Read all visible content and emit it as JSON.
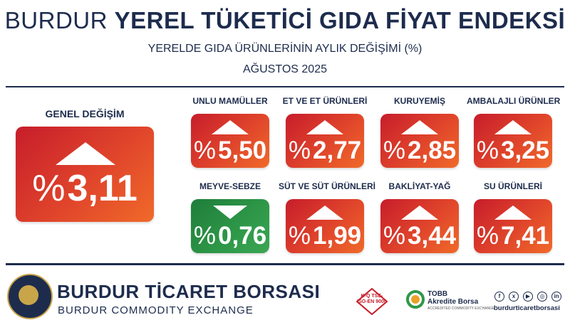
{
  "header": {
    "title_light": "BURDUR",
    "title_bold": "YEREL TÜKETİCİ GIDA FİYAT ENDEKSİ",
    "subtitle": "YERELDE GIDA ÜRÜNLERİNİN AYLIK DEĞİŞİMİ (%)",
    "period": "AĞUSTOS 2025"
  },
  "general": {
    "label": "GENEL DEĞİŞİM",
    "percent_sign": "%",
    "value": "3,11",
    "direction": "up"
  },
  "categories": [
    {
      "label": "UNLU MAMÜLLER",
      "value": "5,50",
      "direction": "up"
    },
    {
      "label": "ET VE ET ÜRÜNLERİ",
      "value": "2,77",
      "direction": "up"
    },
    {
      "label": "KURUYEMİŞ",
      "value": "2,85",
      "direction": "up"
    },
    {
      "label": "AMBALAJLI ÜRÜNLER",
      "value": "3,25",
      "direction": "up"
    },
    {
      "label": "MEYVE-SEBZE",
      "value": "0,76",
      "direction": "down"
    },
    {
      "label": "SÜT VE SÜT ÜRÜNLERİ",
      "value": "1,99",
      "direction": "up"
    },
    {
      "label": "BAKLİYAT-YAĞ",
      "value": "3,44",
      "direction": "up"
    },
    {
      "label": "SU ÜRÜNLERİ",
      "value": "7,41",
      "direction": "up"
    }
  ],
  "percent_sign": "%",
  "colors": {
    "up": "#e0452b",
    "down": "#2e9848",
    "navy": "#1d2c4d"
  },
  "footer": {
    "brand": "BURDUR TİCARET BORSASI",
    "brand_en": "BURDUR COMMODITY EXCHANGE",
    "kq_text": "K-Q TSE-ISO-EN 9000",
    "tobb_line1": "TOBB",
    "tobb_line2": "Akredite Borsa",
    "tobb_line3": "ACCREDITED COMMODITY EXCHANGE",
    "social_icons": [
      "facebook-icon",
      "x-icon",
      "youtube-icon",
      "instagram-icon",
      "linkedin-icon"
    ],
    "handle": "burdurticaretborsasi"
  }
}
